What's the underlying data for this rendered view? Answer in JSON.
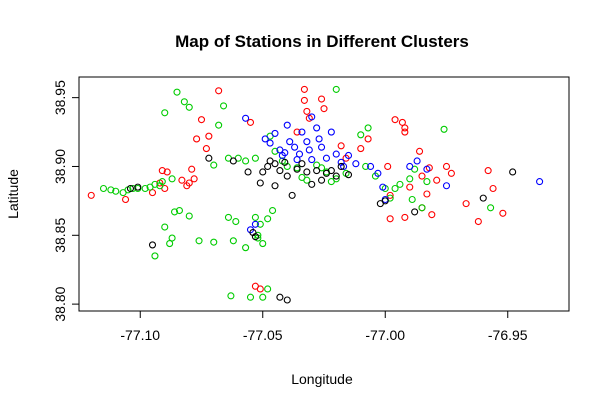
{
  "chart_data": {
    "type": "scatter",
    "title": "Map of Stations in Different Clusters",
    "xlabel": "Longitude",
    "ylabel": "Latitude",
    "xlim": [
      -77.125,
      -76.925
    ],
    "ylim": [
      38.795,
      38.965
    ],
    "xticks": [
      -77.1,
      -77.05,
      -77.0,
      -76.95
    ],
    "xtick_labels": [
      "-77.10",
      "-77.05",
      "-77.00",
      "-76.95"
    ],
    "yticks": [
      38.8,
      38.85,
      38.9,
      38.95
    ],
    "ytick_labels": [
      "38.80",
      "38.85",
      "38.90",
      "38.95"
    ],
    "grid": false,
    "legend": "none",
    "series": [
      {
        "color": "#FF0000",
        "points": [
          [
            -77.12,
            38.879
          ],
          [
            -77.106,
            38.876
          ],
          [
            -77.095,
            38.881
          ],
          [
            -77.09,
            38.884
          ],
          [
            -77.092,
            38.888
          ],
          [
            -77.089,
            38.896
          ],
          [
            -77.091,
            38.897
          ],
          [
            -77.083,
            38.89
          ],
          [
            -77.081,
            38.886
          ],
          [
            -77.08,
            38.888
          ],
          [
            -77.078,
            38.891
          ],
          [
            -77.079,
            38.898
          ],
          [
            -77.077,
            38.92
          ],
          [
            -77.075,
            38.934
          ],
          [
            -77.072,
            38.922
          ],
          [
            -77.073,
            38.913
          ],
          [
            -77.068,
            38.955
          ],
          [
            -77.055,
            38.932
          ],
          [
            -77.053,
            38.813
          ],
          [
            -77.051,
            38.811
          ],
          [
            -77.036,
            38.925
          ],
          [
            -77.033,
            38.956
          ],
          [
            -77.033,
            38.948
          ],
          [
            -77.032,
            38.94
          ],
          [
            -77.031,
            38.935
          ],
          [
            -77.026,
            38.949
          ],
          [
            -77.025,
            38.942
          ],
          [
            -77.018,
            38.915
          ],
          [
            -77.016,
            38.906
          ],
          [
            -77.01,
            38.913
          ],
          [
            -77.007,
            38.92
          ],
          [
            -76.999,
            38.9
          ],
          [
            -76.996,
            38.934
          ],
          [
            -76.993,
            38.932
          ],
          [
            -76.992,
            38.928
          ],
          [
            -76.992,
            38.925
          ],
          [
            -76.986,
            38.911
          ],
          [
            -76.985,
            38.893
          ],
          [
            -76.982,
            38.899
          ],
          [
            -76.979,
            38.89
          ],
          [
            -76.975,
            38.9
          ],
          [
            -76.973,
            38.895
          ],
          [
            -76.99,
            38.885
          ],
          [
            -76.985,
            38.87
          ],
          [
            -76.981,
            38.865
          ],
          [
            -76.992,
            38.863
          ],
          [
            -76.998,
            38.862
          ],
          [
            -76.967,
            38.873
          ],
          [
            -76.962,
            38.86
          ],
          [
            -76.958,
            38.897
          ],
          [
            -76.956,
            38.884
          ],
          [
            -76.952,
            38.866
          ],
          [
            -76.998,
            38.879
          ],
          [
            -76.983,
            38.88
          ]
        ]
      },
      {
        "color": "#00CC00",
        "points": [
          [
            -77.115,
            38.884
          ],
          [
            -77.112,
            38.883
          ],
          [
            -77.11,
            38.882
          ],
          [
            -77.107,
            38.881
          ],
          [
            -77.105,
            38.883
          ],
          [
            -77.103,
            38.884
          ],
          [
            -77.101,
            38.884
          ],
          [
            -77.098,
            38.884
          ],
          [
            -77.096,
            38.885
          ],
          [
            -77.094,
            38.887
          ],
          [
            -77.092,
            38.886
          ],
          [
            -77.091,
            38.889
          ],
          [
            -77.087,
            38.891
          ],
          [
            -77.085,
            38.954
          ],
          [
            -77.082,
            38.947
          ],
          [
            -77.08,
            38.943
          ],
          [
            -77.09,
            38.939
          ],
          [
            -77.086,
            38.867
          ],
          [
            -77.08,
            38.864
          ],
          [
            -77.076,
            38.846
          ],
          [
            -77.07,
            38.845
          ],
          [
            -77.09,
            38.856
          ],
          [
            -77.087,
            38.848
          ],
          [
            -77.094,
            38.835
          ],
          [
            -77.088,
            38.844
          ],
          [
            -77.084,
            38.868
          ],
          [
            -77.07,
            38.901
          ],
          [
            -77.068,
            38.93
          ],
          [
            -77.066,
            38.944
          ],
          [
            -77.064,
            38.906
          ],
          [
            -77.06,
            38.906
          ],
          [
            -77.057,
            38.904
          ],
          [
            -77.053,
            38.906
          ],
          [
            -77.047,
            38.922
          ],
          [
            -77.045,
            38.911
          ],
          [
            -77.042,
            38.904
          ],
          [
            -77.04,
            38.9
          ],
          [
            -77.036,
            38.899
          ],
          [
            -77.034,
            38.892
          ],
          [
            -77.032,
            38.89
          ],
          [
            -77.028,
            38.901
          ],
          [
            -77.026,
            38.899
          ],
          [
            -77.024,
            38.896
          ],
          [
            -77.022,
            38.889
          ],
          [
            -77.02,
            38.956
          ],
          [
            -77.02,
            38.891
          ],
          [
            -77.016,
            38.895
          ],
          [
            -77.01,
            38.923
          ],
          [
            -77.007,
            38.928
          ],
          [
            -77.008,
            38.9
          ],
          [
            -77.004,
            38.893
          ],
          [
            -77.0,
            38.884
          ],
          [
            -76.998,
            38.877
          ],
          [
            -76.996,
            38.884
          ],
          [
            -76.994,
            38.887
          ],
          [
            -76.99,
            38.891
          ],
          [
            -76.988,
            38.898
          ],
          [
            -76.989,
            38.876
          ],
          [
            -76.985,
            38.87
          ],
          [
            -76.983,
            38.889
          ],
          [
            -76.976,
            38.927
          ],
          [
            -76.957,
            38.87
          ],
          [
            -77.064,
            38.863
          ],
          [
            -77.061,
            38.86
          ],
          [
            -77.053,
            38.863
          ],
          [
            -77.051,
            38.858
          ],
          [
            -77.052,
            38.85
          ],
          [
            -77.05,
            38.844
          ],
          [
            -77.052,
            38.848
          ],
          [
            -77.048,
            38.862
          ],
          [
            -77.046,
            38.868
          ],
          [
            -77.063,
            38.806
          ],
          [
            -77.048,
            38.811
          ],
          [
            -77.05,
            38.805
          ],
          [
            -77.055,
            38.805
          ],
          [
            -77.057,
            38.841
          ],
          [
            -77.062,
            38.846
          ]
        ]
      },
      {
        "color": "#0000FF",
        "points": [
          [
            -77.057,
            38.935
          ],
          [
            -77.049,
            38.92
          ],
          [
            -77.047,
            38.917
          ],
          [
            -77.045,
            38.924
          ],
          [
            -77.043,
            38.912
          ],
          [
            -77.042,
            38.908
          ],
          [
            -77.04,
            38.93
          ],
          [
            -77.039,
            38.918
          ],
          [
            -77.037,
            38.914
          ],
          [
            -77.035,
            38.909
          ],
          [
            -77.034,
            38.925
          ],
          [
            -77.032,
            38.918
          ],
          [
            -77.031,
            38.912
          ],
          [
            -77.03,
            38.905
          ],
          [
            -77.028,
            38.928
          ],
          [
            -77.027,
            38.92
          ],
          [
            -77.026,
            38.914
          ],
          [
            -77.024,
            38.906
          ],
          [
            -77.022,
            38.925
          ],
          [
            -77.02,
            38.909
          ],
          [
            -77.018,
            38.903
          ],
          [
            -77.017,
            38.9
          ],
          [
            -77.015,
            38.908
          ],
          [
            -77.012,
            38.902
          ],
          [
            -77.006,
            38.9
          ],
          [
            -77.003,
            38.895
          ],
          [
            -77.001,
            38.885
          ],
          [
            -77.0,
            38.876
          ],
          [
            -76.99,
            38.9
          ],
          [
            -76.987,
            38.904
          ],
          [
            -76.983,
            38.898
          ],
          [
            -76.975,
            38.886
          ],
          [
            -76.937,
            38.889
          ],
          [
            -77.055,
            38.854
          ],
          [
            -77.053,
            38.858
          ],
          [
            -77.03,
            38.936
          ],
          [
            -77.036,
            38.905
          ],
          [
            -77.041,
            38.91
          ]
        ]
      },
      {
        "color": "#000000",
        "points": [
          [
            -77.104,
            38.884
          ],
          [
            -77.101,
            38.885
          ],
          [
            -77.095,
            38.843
          ],
          [
            -77.072,
            38.906
          ],
          [
            -77.062,
            38.904
          ],
          [
            -77.056,
            38.896
          ],
          [
            -77.051,
            38.888
          ],
          [
            -77.048,
            38.9
          ],
          [
            -77.047,
            38.904
          ],
          [
            -77.045,
            38.902
          ],
          [
            -77.043,
            38.897
          ],
          [
            -77.041,
            38.903
          ],
          [
            -77.04,
            38.893
          ],
          [
            -77.038,
            38.879
          ],
          [
            -77.036,
            38.898
          ],
          [
            -77.034,
            38.902
          ],
          [
            -77.032,
            38.896
          ],
          [
            -77.03,
            38.887
          ],
          [
            -77.028,
            38.897
          ],
          [
            -77.026,
            38.89
          ],
          [
            -77.024,
            38.895
          ],
          [
            -77.022,
            38.897
          ],
          [
            -77.02,
            38.893
          ],
          [
            -77.018,
            38.9
          ],
          [
            -77.015,
            38.894
          ],
          [
            -77.002,
            38.873
          ],
          [
            -77.0,
            38.875
          ],
          [
            -76.988,
            38.867
          ],
          [
            -76.948,
            38.896
          ],
          [
            -76.96,
            38.877
          ],
          [
            -77.054,
            38.852
          ],
          [
            -77.053,
            38.849
          ],
          [
            -77.043,
            38.805
          ],
          [
            -77.04,
            38.803
          ],
          [
            -77.05,
            38.896
          ],
          [
            -77.045,
            38.886
          ]
        ]
      }
    ]
  }
}
